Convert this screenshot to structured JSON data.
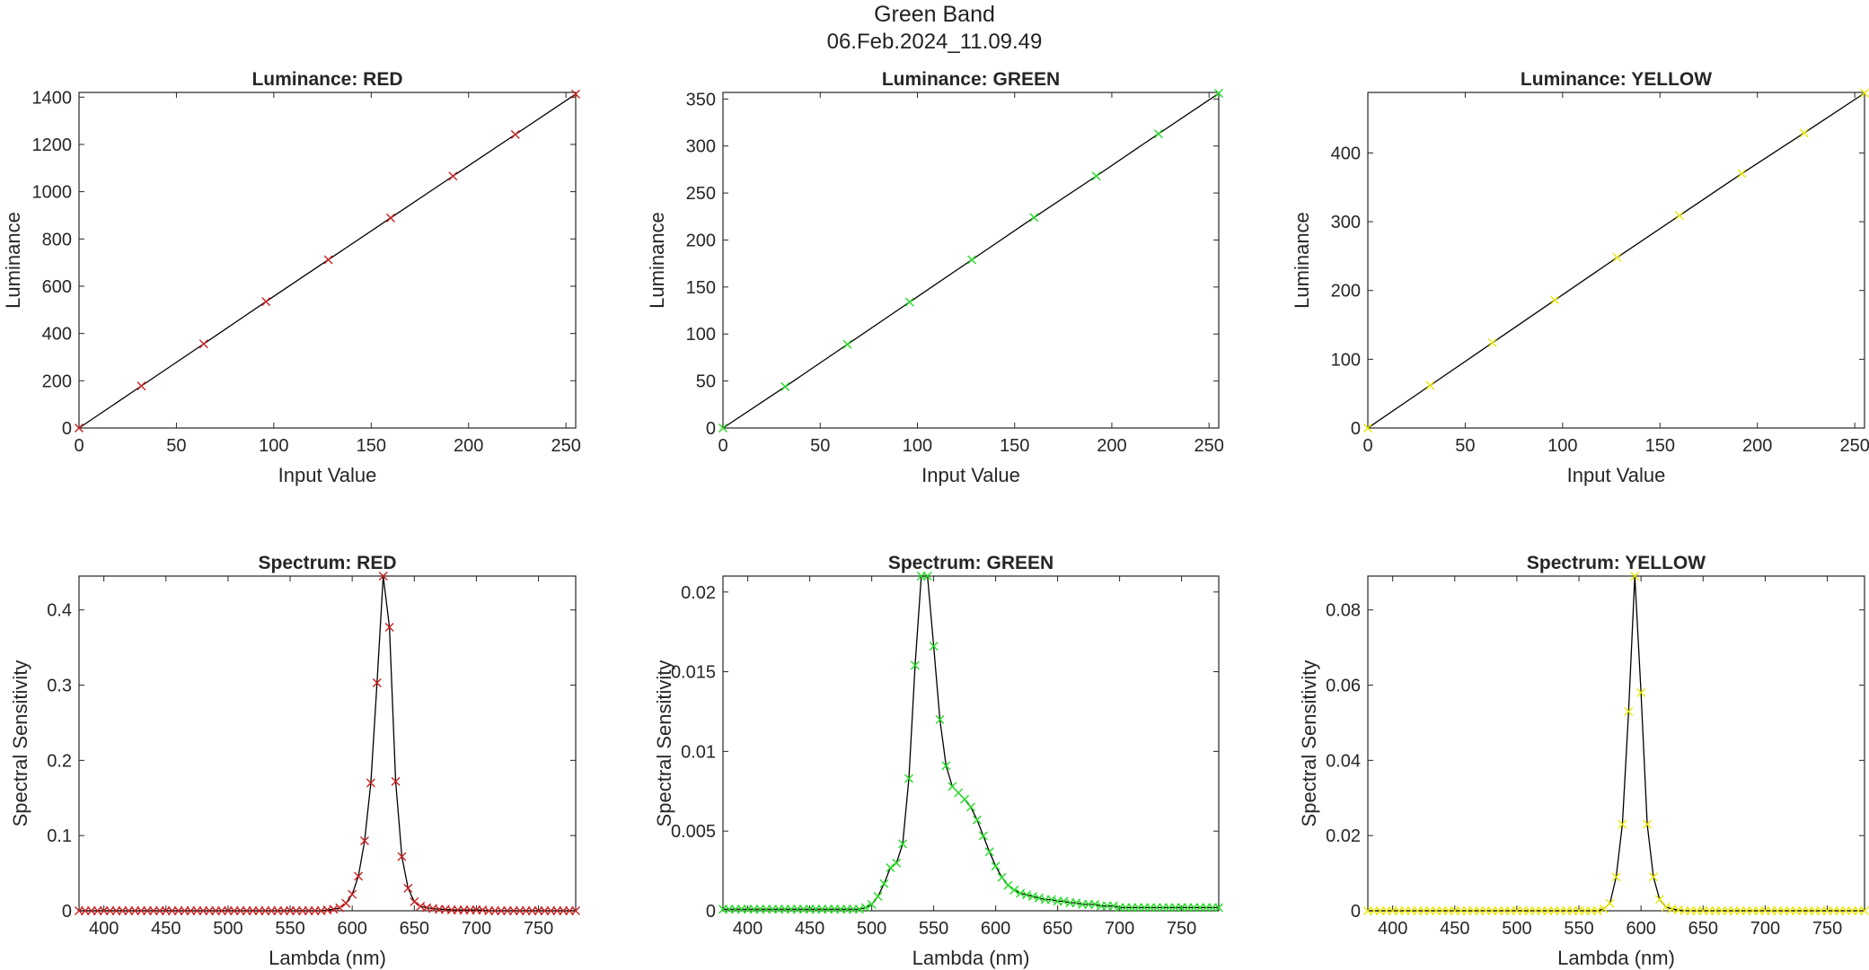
{
  "figure": {
    "title": "Green Band",
    "subtitle": "06.Feb.2024_11.09.49"
  },
  "colors": {
    "red": "#cc1f1f",
    "green": "#22dd22",
    "yellow": "#e8e800",
    "fit_line": "#000000"
  },
  "chart_data": [
    {
      "type": "line",
      "title": "Luminance: RED",
      "xlabel": "Input Value",
      "ylabel": "Luminance",
      "xlim": [
        0,
        255
      ],
      "ylim": [
        0,
        1420
      ],
      "xticks": [
        0,
        50,
        100,
        150,
        200,
        250
      ],
      "yticks": [
        0,
        200,
        400,
        600,
        800,
        1000,
        1200,
        1400
      ],
      "marker_color": "red",
      "series": [
        {
          "x": [
            0,
            32,
            64,
            96,
            128,
            160,
            192,
            224,
            255
          ],
          "y": [
            0,
            178,
            356,
            535,
            712,
            889,
            1066,
            1242,
            1413
          ]
        }
      ]
    },
    {
      "type": "line",
      "title": "Luminance: GREEN",
      "xlabel": "Input Value",
      "ylabel": "Luminance",
      "xlim": [
        0,
        255
      ],
      "ylim": [
        0,
        357
      ],
      "xticks": [
        0,
        50,
        100,
        150,
        200,
        250
      ],
      "yticks": [
        0,
        50,
        100,
        150,
        200,
        250,
        300,
        350
      ],
      "marker_color": "green",
      "series": [
        {
          "x": [
            0,
            32,
            64,
            96,
            128,
            160,
            192,
            224,
            255
          ],
          "y": [
            0,
            44,
            89,
            134,
            179,
            224,
            268,
            313,
            356
          ]
        }
      ]
    },
    {
      "type": "line",
      "title": "Luminance: YELLOW",
      "xlabel": "Input Value",
      "ylabel": "Luminance",
      "xlim": [
        0,
        255
      ],
      "ylim": [
        0,
        488
      ],
      "xticks": [
        0,
        50,
        100,
        150,
        200,
        250
      ],
      "yticks": [
        0,
        100,
        200,
        300,
        400
      ],
      "marker_color": "yellow",
      "series": [
        {
          "x": [
            0,
            32,
            64,
            96,
            128,
            160,
            192,
            224,
            255
          ],
          "y": [
            0,
            62,
            124,
            186,
            248,
            309,
            370,
            429,
            487
          ]
        }
      ]
    },
    {
      "type": "line",
      "title": "Spectrum: RED",
      "xlabel": "Lambda (nm)",
      "ylabel": "Spectral Sensitivity",
      "xlim": [
        380,
        780
      ],
      "ylim": [
        0,
        0.445
      ],
      "xticks": [
        400,
        450,
        500,
        550,
        600,
        650,
        700,
        750
      ],
      "yticks": [
        0,
        0.1,
        0.2,
        0.3,
        0.4
      ],
      "ytick_labels": [
        "0",
        "0.1",
        "0.2",
        "0.3",
        "0.4"
      ],
      "marker_color": "red",
      "series": [
        {
          "x": [
            380,
            385,
            390,
            395,
            400,
            405,
            410,
            415,
            420,
            425,
            430,
            435,
            440,
            445,
            450,
            455,
            460,
            465,
            470,
            475,
            480,
            485,
            490,
            495,
            500,
            505,
            510,
            515,
            520,
            525,
            530,
            535,
            540,
            545,
            550,
            555,
            560,
            565,
            570,
            575,
            580,
            585,
            590,
            595,
            600,
            605,
            610,
            615,
            620,
            625,
            630,
            635,
            640,
            645,
            650,
            655,
            660,
            665,
            670,
            675,
            680,
            685,
            690,
            695,
            700,
            705,
            710,
            715,
            720,
            725,
            730,
            735,
            740,
            745,
            750,
            755,
            760,
            765,
            770,
            775,
            780
          ],
          "y": [
            0,
            0,
            0,
            0,
            0,
            0,
            0,
            0,
            0,
            0,
            0,
            0,
            0,
            0,
            0,
            0,
            0,
            0,
            0,
            0,
            0,
            0,
            0,
            0,
            0,
            0,
            0,
            0,
            0,
            0,
            0,
            0,
            0,
            0,
            0,
            0,
            0,
            0,
            0,
            0,
            0.001,
            0.002,
            0.004,
            0.01,
            0.022,
            0.046,
            0.093,
            0.17,
            0.303,
            0.445,
            0.377,
            0.172,
            0.072,
            0.03,
            0.012,
            0.006,
            0.004,
            0.003,
            0.002,
            0.002,
            0.001,
            0.001,
            0.001,
            0.001,
            0.001,
            0.001,
            0,
            0,
            0,
            0,
            0,
            0,
            0,
            0,
            0,
            0,
            0,
            0,
            0,
            0,
            0
          ]
        }
      ]
    },
    {
      "type": "line",
      "title": "Spectrum: GREEN",
      "xlabel": "Lambda (nm)",
      "ylabel": "Spectral Sensitivity",
      "xlim": [
        380,
        780
      ],
      "ylim": [
        0,
        0.021
      ],
      "xticks": [
        400,
        450,
        500,
        550,
        600,
        650,
        700,
        750
      ],
      "yticks": [
        0,
        0.005,
        0.01,
        0.015,
        0.02
      ],
      "ytick_labels": [
        "0",
        "0.005",
        "0.01",
        "0.015",
        "0.02"
      ],
      "marker_color": "green",
      "series": [
        {
          "x": [
            380,
            385,
            390,
            395,
            400,
            405,
            410,
            415,
            420,
            425,
            430,
            435,
            440,
            445,
            450,
            455,
            460,
            465,
            470,
            475,
            480,
            485,
            490,
            495,
            500,
            505,
            510,
            515,
            520,
            525,
            530,
            535,
            540,
            545,
            550,
            555,
            560,
            565,
            570,
            575,
            580,
            585,
            590,
            595,
            600,
            605,
            610,
            615,
            620,
            625,
            630,
            635,
            640,
            645,
            650,
            655,
            660,
            665,
            670,
            675,
            680,
            685,
            690,
            695,
            700,
            705,
            710,
            715,
            720,
            725,
            730,
            735,
            740,
            745,
            750,
            755,
            760,
            765,
            770,
            775,
            780
          ],
          "y": [
            0.0001,
            0.0001,
            0.0001,
            0.0001,
            0.0001,
            0.0001,
            0.0001,
            0.0001,
            0.0001,
            0.0001,
            0.0001,
            0.0001,
            0.0001,
            0.0001,
            0.0001,
            0.0001,
            0.0001,
            0.0001,
            0.0001,
            0.0001,
            0.0001,
            0.0001,
            0.0001,
            0.0002,
            0.0004,
            0.0009,
            0.0017,
            0.0027,
            0.003,
            0.0042,
            0.0083,
            0.0154,
            0.021,
            0.021,
            0.0166,
            0.012,
            0.0091,
            0.0078,
            0.0074,
            0.007,
            0.0065,
            0.0057,
            0.0047,
            0.0037,
            0.0028,
            0.0021,
            0.0016,
            0.0013,
            0.0011,
            0.001,
            0.0009,
            0.0008,
            0.0007,
            0.0007,
            0.0006,
            0.0006,
            0.0005,
            0.0005,
            0.0004,
            0.0004,
            0.0004,
            0.0003,
            0.0003,
            0.0003,
            0.0002,
            0.0002,
            0.0002,
            0.0002,
            0.0002,
            0.0002,
            0.0002,
            0.0002,
            0.0002,
            0.0002,
            0.0002,
            0.0002,
            0.0002,
            0.0002,
            0.0002,
            0.0002,
            0.0002
          ]
        }
      ]
    },
    {
      "type": "line",
      "title": "Spectrum: YELLOW",
      "xlabel": "Lambda (nm)",
      "ylabel": "Spectral Sensitivity",
      "xlim": [
        380,
        780
      ],
      "ylim": [
        0,
        0.089
      ],
      "xticks": [
        400,
        450,
        500,
        550,
        600,
        650,
        700,
        750
      ],
      "yticks": [
        0,
        0.02,
        0.04,
        0.06,
        0.08
      ],
      "ytick_labels": [
        "0",
        "0.02",
        "0.04",
        "0.06",
        "0.08"
      ],
      "marker_color": "yellow",
      "series": [
        {
          "x": [
            380,
            385,
            390,
            395,
            400,
            405,
            410,
            415,
            420,
            425,
            430,
            435,
            440,
            445,
            450,
            455,
            460,
            465,
            470,
            475,
            480,
            485,
            490,
            495,
            500,
            505,
            510,
            515,
            520,
            525,
            530,
            535,
            540,
            545,
            550,
            555,
            560,
            565,
            570,
            575,
            580,
            585,
            590,
            595,
            600,
            605,
            610,
            615,
            620,
            625,
            630,
            635,
            640,
            645,
            650,
            655,
            660,
            665,
            670,
            675,
            680,
            685,
            690,
            695,
            700,
            705,
            710,
            715,
            720,
            725,
            730,
            735,
            740,
            745,
            750,
            755,
            760,
            765,
            770,
            775,
            780
          ],
          "y": [
            0,
            0,
            0,
            0,
            0,
            0,
            0,
            0,
            0,
            0,
            0,
            0,
            0,
            0,
            0,
            0,
            0,
            0,
            0,
            0,
            0,
            0,
            0,
            0,
            0,
            0,
            0,
            0,
            0,
            0,
            0,
            0,
            0,
            0,
            0,
            0,
            0,
            0,
            0.0005,
            0.002,
            0.009,
            0.023,
            0.053,
            0.089,
            0.058,
            0.023,
            0.009,
            0.003,
            0.001,
            0.0005,
            0.0002,
            0,
            0,
            0,
            0,
            0,
            0,
            0,
            0,
            0,
            0,
            0,
            0,
            0,
            0,
            0,
            0,
            0,
            0,
            0,
            0,
            0,
            0,
            0,
            0,
            0,
            0,
            0,
            0,
            0,
            0
          ]
        }
      ]
    }
  ]
}
